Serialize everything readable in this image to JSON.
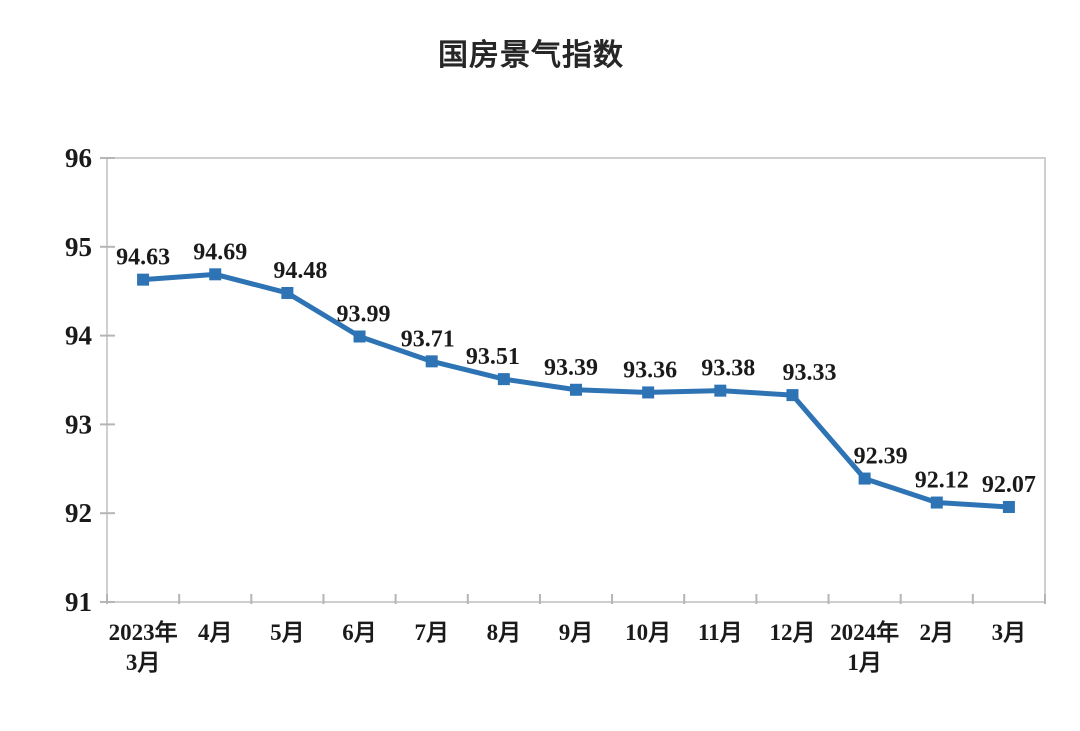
{
  "chart_data": {
    "type": "line",
    "title": "国房景气指数",
    "categories": [
      "2023年\n3月",
      "4月",
      "5月",
      "6月",
      "7月",
      "8月",
      "9月",
      "10月",
      "11月",
      "12月",
      "2024年\n1月",
      "2月",
      "3月"
    ],
    "values": [
      94.63,
      94.69,
      94.48,
      93.99,
      93.71,
      93.51,
      93.39,
      93.36,
      93.38,
      93.33,
      92.39,
      92.12,
      92.07
    ],
    "data_labels": [
      "94.63",
      "94.69",
      "94.48",
      "93.99",
      "93.71",
      "93.51",
      "93.39",
      "93.36",
      "93.38",
      "93.33",
      "92.39",
      "92.12",
      "92.07"
    ],
    "xlabel": "",
    "ylabel": "",
    "ylim": [
      91,
      96
    ],
    "yticks": [
      91,
      92,
      93,
      94,
      95,
      96
    ],
    "grid": false,
    "legend_position": "none",
    "marker": "square",
    "colors": {
      "line": "#2E74B5",
      "marker": "#2E74B5",
      "axis_border": "#CFCFCF",
      "tick": "#B5B5B5",
      "text": "#1A1A1A",
      "background": "#FFFFFF"
    }
  }
}
